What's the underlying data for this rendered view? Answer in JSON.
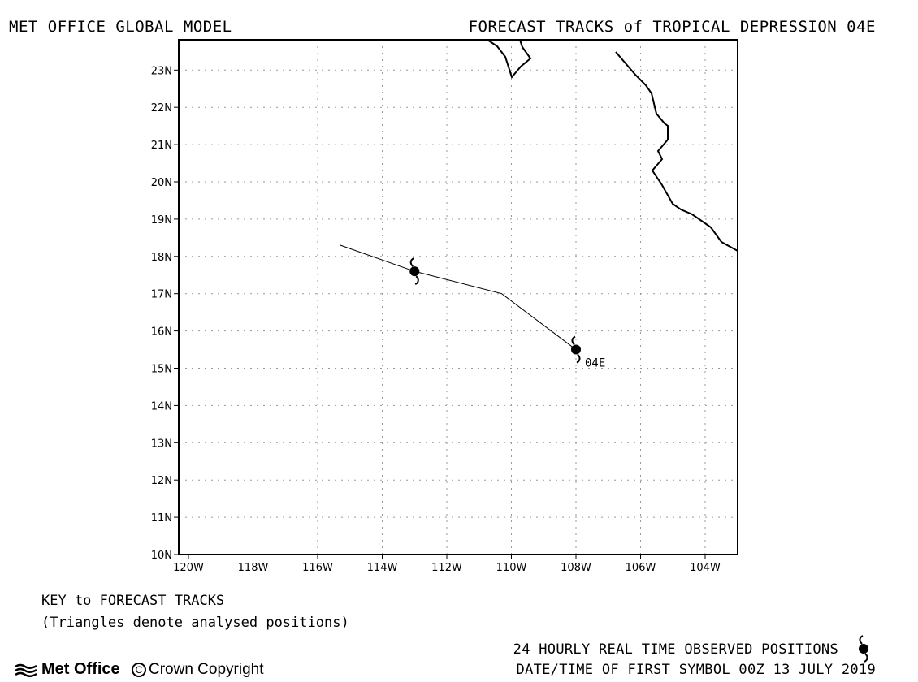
{
  "header": {
    "model_title": "MET OFFICE GLOBAL MODEL",
    "forecast_title": "FORECAST TRACKS of TROPICAL DEPRESSION 04E"
  },
  "map": {
    "lon_labels": [
      "120W",
      "118W",
      "116W",
      "114W",
      "112W",
      "110W",
      "108W",
      "106W",
      "104W"
    ],
    "lat_labels": [
      "10N",
      "11N",
      "12N",
      "13N",
      "14N",
      "15N",
      "16N",
      "17N",
      "18N",
      "19N",
      "20N",
      "21N",
      "22N",
      "23N"
    ],
    "storm_label": "04E",
    "grid": true,
    "track_points": [
      {
        "lon": -115.3,
        "lat": 18.3
      },
      {
        "lon": -113.0,
        "lat": 17.6
      },
      {
        "lon": -110.3,
        "lat": 17.0
      },
      {
        "lon": -108.0,
        "lat": 15.5
      }
    ],
    "observed_positions": [
      {
        "lon": -113.0,
        "lat": 17.6
      },
      {
        "lon": -108.0,
        "lat": 15.5
      }
    ]
  },
  "key": {
    "title": "KEY to FORECAST TRACKS",
    "note": "(Triangles denote analysed positions)"
  },
  "footer": {
    "observed_label": "24 HOURLY REAL TIME OBSERVED POSITIONS",
    "first_symbol": "DATE/TIME OF FIRST SYMBOL 00Z 13 JULY 2019",
    "brand": "Met Office",
    "copyright": "Crown Copyright"
  },
  "colors": {
    "line": "#000000",
    "grid": "#999999",
    "background": "#ffffff"
  }
}
